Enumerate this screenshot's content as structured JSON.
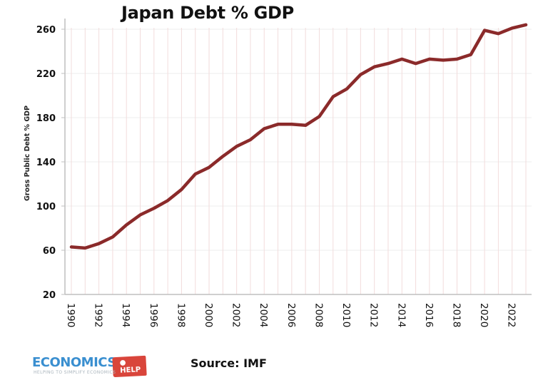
{
  "chart_data": {
    "type": "line",
    "title": "Japan Debt % GDP",
    "xlabel": "",
    "ylabel": "Gross Public Debt % GDP",
    "ylim": [
      20,
      260
    ],
    "yticks": [
      20,
      60,
      100,
      140,
      180,
      220,
      260
    ],
    "xtick_labels": [
      "1990",
      "1992",
      "1994",
      "1996",
      "1998",
      "2000",
      "2002",
      "2004",
      "2006",
      "2008",
      "2010",
      "2012",
      "2014",
      "2016",
      "2018",
      "2020",
      "2022"
    ],
    "grid": true,
    "legend": null,
    "x": [
      1990,
      1991,
      1992,
      1993,
      1994,
      1995,
      1996,
      1997,
      1998,
      1999,
      2000,
      2001,
      2002,
      2003,
      2004,
      2005,
      2006,
      2007,
      2008,
      2009,
      2010,
      2011,
      2012,
      2013,
      2014,
      2015,
      2016,
      2017,
      2018,
      2019,
      2020,
      2021,
      2022,
      2023
    ],
    "series": [
      {
        "name": "Gross Public Debt % GDP",
        "color": "#8b2a2a",
        "values": [
          63,
          62,
          66,
          72,
          83,
          92,
          98,
          105,
          115,
          129,
          135,
          145,
          154,
          160,
          170,
          174,
          174,
          173,
          181,
          199,
          206,
          219,
          226,
          229,
          233,
          229,
          233,
          232,
          233,
          237,
          259,
          256,
          261,
          264
        ]
      }
    ]
  },
  "footer": {
    "logo_main": "ECONOMICS",
    "logo_tag": "HELP",
    "logo_sub": "HELPING TO SIMPLIFY ECONOMICS",
    "source": "Source: IMF"
  },
  "colors": {
    "line": "#8b2a2a",
    "grid": "#eeeeee",
    "vgrid": "#f2dcdc",
    "axis": "#bfbfbf",
    "logo_blue": "#3a8fd0",
    "logo_red": "#d9453b"
  }
}
